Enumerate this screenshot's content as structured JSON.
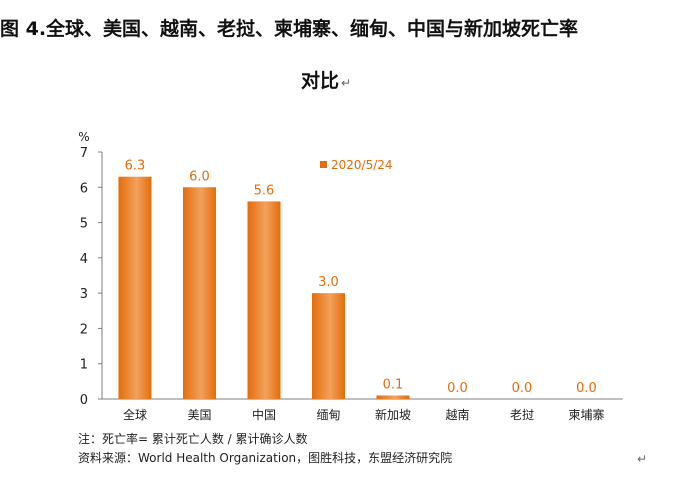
{
  "title": {
    "line1": "图 4.全球、美国、越南、老挝、柬埔寨、缅甸、中国与新加坡死亡率",
    "line2": "对比"
  },
  "paragraph_mark": "↵",
  "notes": {
    "formula": "注：死亡率= 累计死亡人数 / 累计确诊人数",
    "source": "资料来源：World Health Organization，图胜科技，东盟经济研究院"
  },
  "colors": {
    "bar": "#E46C0A",
    "bar_light": "#F2A15C",
    "value_label": "#E46C0A",
    "axis": "#7F7F7F"
  },
  "chart_data": {
    "type": "bar",
    "categories": [
      "全球",
      "美国",
      "中国",
      "缅甸",
      "新加坡",
      "越南",
      "老挝",
      "柬埔寨"
    ],
    "series": [
      {
        "name": "2020/5/24",
        "values": [
          6.3,
          6.0,
          5.6,
          3.0,
          0.1,
          0.0,
          0.0,
          0.0
        ]
      }
    ],
    "value_labels": [
      "6.3",
      "6.0",
      "5.6",
      "3.0",
      "0.1",
      "0.0",
      "0.0",
      "0.0"
    ],
    "ylabel": "%",
    "ylim": [
      0,
      7
    ],
    "yticks": [
      "0",
      "1",
      "2",
      "3",
      "4",
      "5",
      "6",
      "7"
    ],
    "grid": false,
    "legend_position": "top-center"
  }
}
